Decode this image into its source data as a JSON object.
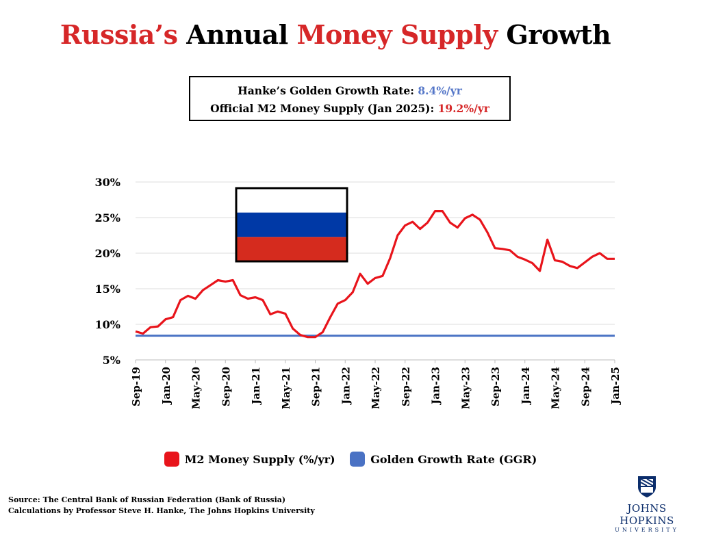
{
  "title": {
    "part1": "Russia’s",
    "part2": " Annual ",
    "part3": "Money Supply",
    "part4": " Growth"
  },
  "infobox": {
    "line1_label": "Hanke’s Golden Growth Rate: ",
    "line1_value": "8.4%/yr",
    "line2_label": "Official M2 Money Supply (Jan 2025): ",
    "line2_value": "19.2%/yr"
  },
  "colors": {
    "m2": "#e8141b",
    "ggr": "#4a72c4",
    "title_red": "#d62728",
    "flag_white": "#ffffff",
    "flag_blue": "#0039a6",
    "flag_red": "#d52b1e"
  },
  "chart_data": {
    "type": "line",
    "ylim": [
      5,
      30
    ],
    "yticks": [
      5,
      10,
      15,
      20,
      25,
      30
    ],
    "ytick_labels": [
      "5%",
      "10%",
      "15%",
      "20%",
      "25%",
      "30%"
    ],
    "grid": true,
    "x": [
      "Sep-19",
      "Oct-19",
      "Nov-19",
      "Dec-19",
      "Jan-20",
      "Feb-20",
      "Mar-20",
      "Apr-20",
      "May-20",
      "Jun-20",
      "Jul-20",
      "Aug-20",
      "Sep-20",
      "Oct-20",
      "Nov-20",
      "Dec-20",
      "Jan-21",
      "Feb-21",
      "Mar-21",
      "Apr-21",
      "May-21",
      "Jun-21",
      "Jul-21",
      "Aug-21",
      "Sep-21",
      "Oct-21",
      "Nov-21",
      "Dec-21",
      "Jan-22",
      "Feb-22",
      "Mar-22",
      "Apr-22",
      "May-22",
      "Jun-22",
      "Jul-22",
      "Aug-22",
      "Sep-22",
      "Oct-22",
      "Nov-22",
      "Dec-22",
      "Jan-23",
      "Feb-23",
      "Mar-23",
      "Apr-23",
      "May-23",
      "Jun-23",
      "Jul-23",
      "Aug-23",
      "Sep-23",
      "Oct-23",
      "Nov-23",
      "Dec-23",
      "Jan-24",
      "Feb-24",
      "Mar-24",
      "Apr-24",
      "May-24",
      "Jun-24",
      "Jul-24",
      "Aug-24",
      "Sep-24",
      "Oct-24",
      "Nov-24",
      "Dec-24",
      "Jan-25"
    ],
    "xtick_labels": [
      "Sep-19",
      "Jan-20",
      "May-20",
      "Sep-20",
      "Jan-21",
      "May-21",
      "Sep-21",
      "Jan-22",
      "May-22",
      "Sep-22",
      "Jan-23",
      "May-23",
      "Sep-23",
      "Jan-24",
      "May-24",
      "Sep-24",
      "Jan-25"
    ],
    "series": [
      {
        "name": "M2 Money Supply (%/yr)",
        "values": [
          9.0,
          8.7,
          9.6,
          9.7,
          10.7,
          11.0,
          13.4,
          14.0,
          13.6,
          14.8,
          15.5,
          16.2,
          16.0,
          16.2,
          14.1,
          13.6,
          13.8,
          13.4,
          11.4,
          11.8,
          11.5,
          9.4,
          8.5,
          8.2,
          8.2,
          8.9,
          11.0,
          12.9,
          13.4,
          14.5,
          17.1,
          15.7,
          16.5,
          16.8,
          19.3,
          22.5,
          23.9,
          24.4,
          23.4,
          24.3,
          25.9,
          25.9,
          24.3,
          23.6,
          24.9,
          25.4,
          24.7,
          22.9,
          20.7,
          20.6,
          20.4,
          19.5,
          19.1,
          18.6,
          17.5,
          21.9,
          19.0,
          18.8,
          18.2,
          17.9,
          18.7,
          19.5,
          20.0,
          19.2,
          19.2
        ]
      },
      {
        "name": "Golden Growth Rate (GGR)",
        "constant": 8.4
      }
    ]
  },
  "legend": {
    "m2": "M2 Money Supply (%/yr)",
    "ggr": "Golden Growth Rate (GGR)"
  },
  "source": {
    "line1": "Source: The Central Bank of Russian Federation (Bank of Russia)",
    "line2": "Calculations by Professor Steve H. Hanke, The Johns Hopkins University"
  },
  "logo": {
    "name": "JOHNS HOPKINS",
    "sub": "UNIVERSITY"
  }
}
